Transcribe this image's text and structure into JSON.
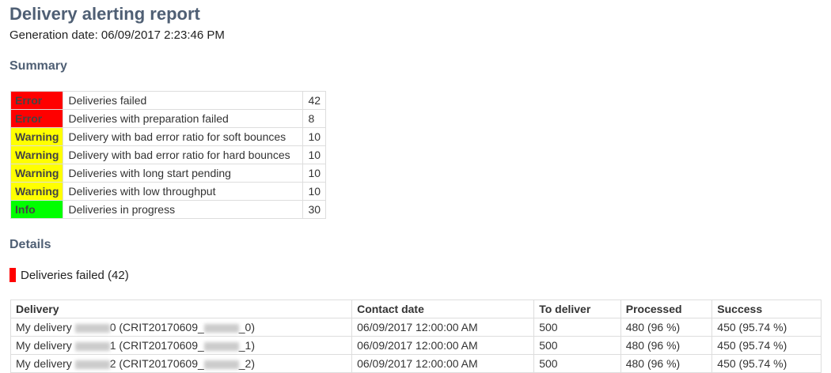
{
  "title": "Delivery alerting report",
  "generation": "Generation date: 06/09/2017 2:23:46 PM",
  "summary_heading": "Summary",
  "summary": [
    {
      "level": "Error",
      "color": "#ff0000",
      "label": "Deliveries failed",
      "count": "42"
    },
    {
      "level": "Error",
      "color": "#ff0000",
      "label": "Deliveries with preparation failed",
      "count": "8"
    },
    {
      "level": "Warning",
      "color": "#ffff00",
      "label": "Delivery with bad error ratio for soft bounces",
      "count": "10"
    },
    {
      "level": "Warning",
      "color": "#ffff00",
      "label": "Delivery with bad error ratio for hard bounces",
      "count": "10"
    },
    {
      "level": "Warning",
      "color": "#ffff00",
      "label": "Deliveries with long start pending",
      "count": "10"
    },
    {
      "level": "Warning",
      "color": "#ffff00",
      "label": "Deliveries with low throughput",
      "count": "10"
    },
    {
      "level": "Info",
      "color": "#00ff00",
      "label": "Deliveries in progress",
      "count": "30"
    }
  ],
  "details_heading": "Details",
  "section": {
    "label": "Deliveries failed (42)",
    "color": "#ff0000"
  },
  "columns": [
    "Delivery",
    "Contact date",
    "To deliver",
    "Processed",
    "Success"
  ],
  "rows": [
    {
      "pre": "My delivery ",
      "mid": "0 (CRIT20170609_",
      "end": "_0)",
      "date": "06/09/2017 12:00:00 AM",
      "to": "500",
      "proc": "480 (96 %)",
      "succ": "450 (95.74 %)"
    },
    {
      "pre": "My delivery ",
      "mid": "1 (CRIT20170609_",
      "end": "_1)",
      "date": "06/09/2017 12:00:00 AM",
      "to": "500",
      "proc": "480 (96 %)",
      "succ": "450 (95.74 %)"
    },
    {
      "pre": "My delivery ",
      "mid": "2 (CRIT20170609_",
      "end": "_2)",
      "date": "06/09/2017 12:00:00 AM",
      "to": "500",
      "proc": "480 (96 %)",
      "succ": "450 (95.74 %)"
    }
  ]
}
